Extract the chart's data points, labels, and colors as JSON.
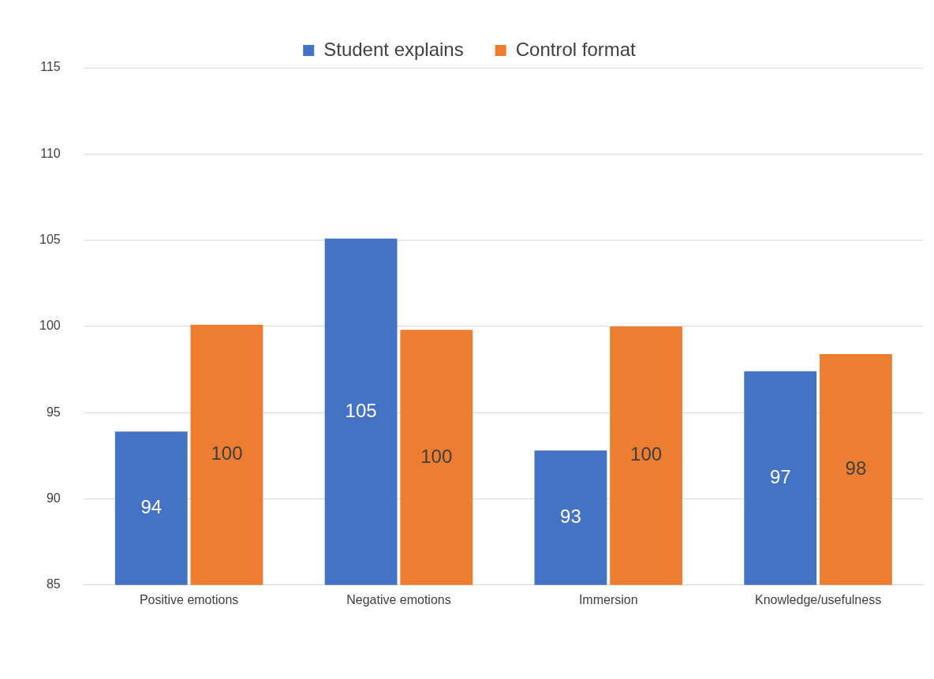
{
  "chart_data": {
    "type": "bar",
    "categories": [
      "Positive emotions",
      "Negative emotions",
      "Immersion",
      "Knowledge/usefulness"
    ],
    "series": [
      {
        "name": "Student explains",
        "color": "#4472c4",
        "values": [
          93.9,
          105.1,
          92.8,
          97.4
        ],
        "value_labels": [
          "94",
          "105",
          "93",
          "97"
        ]
      },
      {
        "name": "Control format",
        "color": "#ed7d31",
        "values": [
          100.1,
          99.8,
          100.0,
          98.4
        ],
        "value_labels": [
          "100",
          "100",
          "100",
          "98"
        ]
      }
    ],
    "ylim": [
      85,
      115
    ],
    "yticks": [
      85,
      90,
      95,
      100,
      105,
      110,
      115
    ],
    "grid": "y",
    "legend": "top"
  }
}
